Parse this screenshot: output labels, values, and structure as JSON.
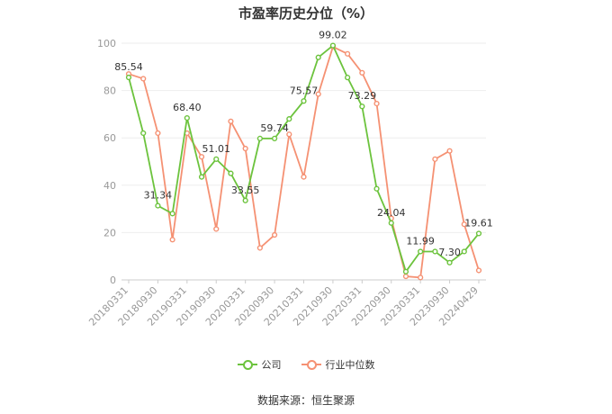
{
  "title": "市盈率历史分位（%）",
  "source": "数据来源：恒生聚源",
  "colors": {
    "company": "#6cc33d",
    "industry": "#f59173",
    "grid": "#eeeeee",
    "axis": "#999999"
  },
  "chart_data": {
    "type": "line",
    "title": "市盈率历史分位（%）",
    "xlabel": "",
    "ylabel": "",
    "ylim": [
      0,
      100
    ],
    "yticks": [
      0,
      20,
      40,
      60,
      80,
      100
    ],
    "grid": true,
    "legend_position": "bottom",
    "x_tick_labels": [
      "20180331",
      "20180930",
      "20190331",
      "20190930",
      "20200331",
      "20200930",
      "20210331",
      "20210930",
      "20220331",
      "20220930",
      "20230331",
      "20230930",
      "20240429"
    ],
    "series": [
      {
        "name": "公司",
        "color": "#6cc33d",
        "values": [
          85.54,
          62.0,
          31.34,
          28.0,
          68.4,
          43.5,
          51.01,
          45.0,
          33.55,
          59.74,
          59.74,
          68.0,
          75.57,
          94.0,
          99.02,
          85.5,
          73.29,
          38.5,
          24.04,
          3.5,
          11.99,
          11.99,
          7.3,
          12.0,
          19.61
        ],
        "labels": {
          "0": "85.54",
          "2": "31.34",
          "4": "68.40",
          "6": "51.01",
          "8": "33.55",
          "10": "59.74",
          "12": "75.57",
          "14": "99.02",
          "16": "73.29",
          "18": "24.04",
          "20": "11.99",
          "22": "7.30",
          "24": "19.61"
        }
      },
      {
        "name": "行业中位数",
        "color": "#f59173",
        "values": [
          87.0,
          85.0,
          62.0,
          17.0,
          62.0,
          52.0,
          21.5,
          67.0,
          55.5,
          13.5,
          19.0,
          61.5,
          43.5,
          78.5,
          98.5,
          95.5,
          87.5,
          74.5,
          26.0,
          1.5,
          1.0,
          51.0,
          54.5,
          23.5,
          4.0
        ]
      }
    ]
  }
}
